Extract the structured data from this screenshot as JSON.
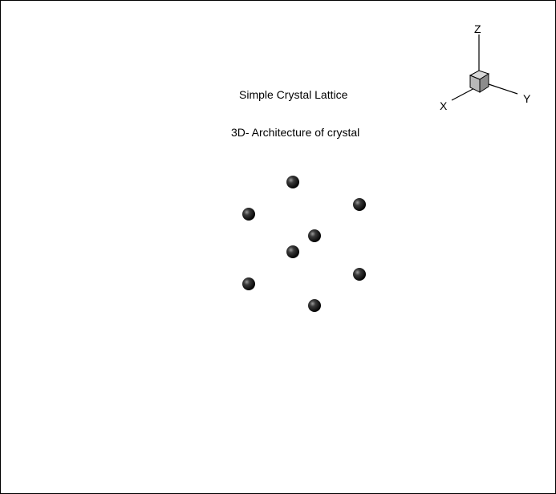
{
  "diagram": {
    "title": "Simple Crystal Lattice",
    "subtitle": "3D- Architecture of crystal",
    "axis_triad": {
      "x_label": "X",
      "y_label": "Y",
      "z_label": "Z",
      "icon": "3d-axis-triad-icon"
    },
    "atoms": {
      "count": 8,
      "color": "#111111",
      "icon": "sphere-atom-icon"
    },
    "colors": {
      "background": "#ffffff",
      "frame": "#000000",
      "cube_front": "#b8b8b8",
      "cube_top": "#d8d8d8",
      "cube_side": "#8c8c8c"
    }
  }
}
